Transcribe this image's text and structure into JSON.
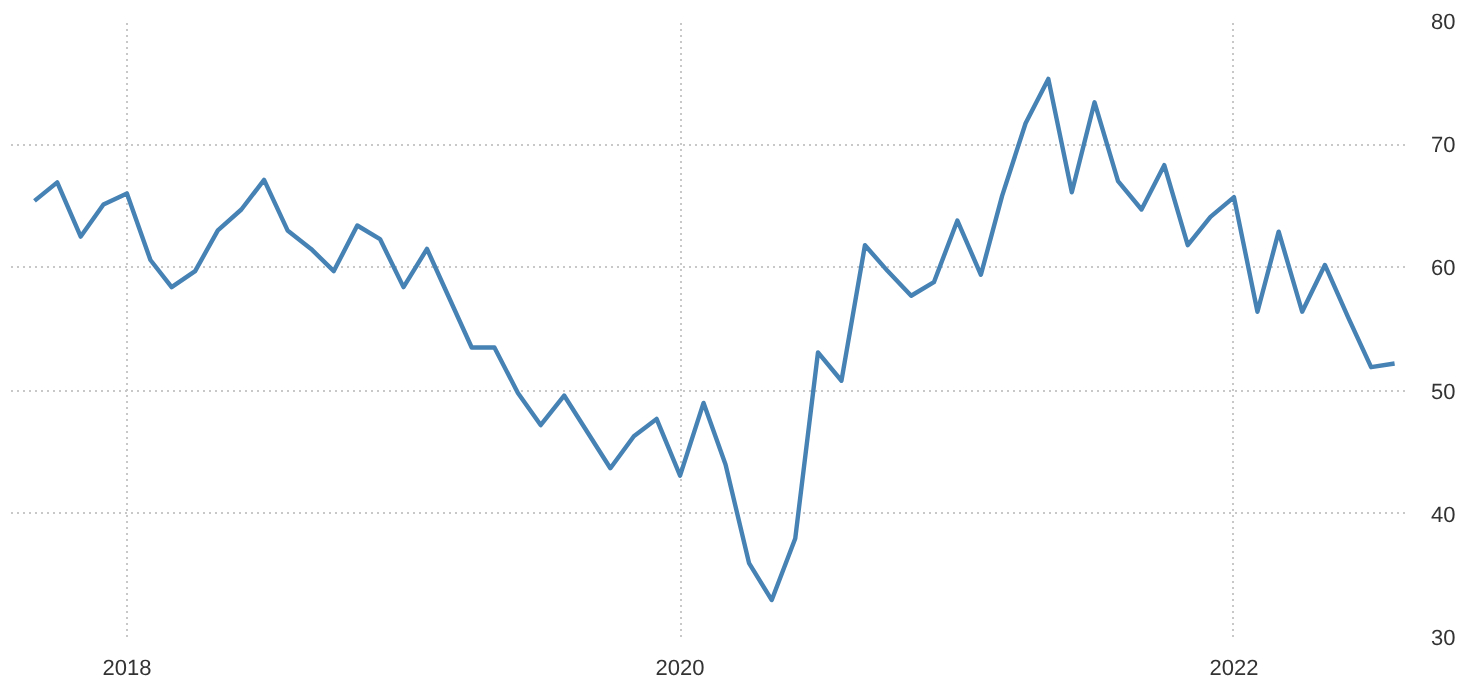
{
  "chart_data": {
    "type": "line",
    "x": [
      "2017-09",
      "2017-10",
      "2017-11",
      "2017-12",
      "2018-01",
      "2018-02",
      "2018-03",
      "2018-04",
      "2018-05",
      "2018-06",
      "2018-07",
      "2018-08",
      "2018-09",
      "2018-10",
      "2018-11",
      "2018-12",
      "2019-01",
      "2019-02",
      "2019-03",
      "2019-04",
      "2019-05",
      "2019-06",
      "2019-07",
      "2019-08",
      "2019-09",
      "2019-10",
      "2019-11",
      "2019-12",
      "2020-01",
      "2020-02",
      "2020-03",
      "2020-04",
      "2020-05",
      "2020-06",
      "2020-07",
      "2020-08",
      "2020-09",
      "2020-10",
      "2020-11",
      "2020-12",
      "2021-01",
      "2021-02",
      "2021-03",
      "2021-04",
      "2021-05",
      "2021-06",
      "2021-07",
      "2021-08",
      "2021-09",
      "2021-10",
      "2021-11",
      "2021-12",
      "2022-01",
      "2022-02",
      "2022-03",
      "2022-04",
      "2022-05",
      "2022-06",
      "2022-07",
      "2022-08"
    ],
    "series": [
      {
        "color": "#4682b4",
        "values": [
          65.4,
          66.9,
          62.5,
          65.1,
          66.0,
          60.6,
          58.4,
          59.7,
          63.0,
          64.7,
          67.1,
          63.0,
          61.5,
          59.7,
          63.4,
          62.3,
          58.4,
          61.5,
          57.7,
          53.5,
          53.5,
          49.8,
          47.2,
          49.6,
          46.6,
          43.7,
          46.3,
          47.7,
          43.1,
          49.0,
          44.0,
          36.0,
          33.0,
          38.0,
          53.1,
          50.8,
          61.8,
          59.7,
          57.7,
          58.8,
          63.8,
          59.4,
          65.8,
          71.7,
          75.3,
          66.1,
          73.4,
          67.0,
          64.7,
          68.3,
          61.8,
          64.1,
          65.7,
          56.4,
          62.9,
          56.4,
          60.2,
          55.9,
          51.9,
          52.2
        ]
      }
    ],
    "xlim": [
      "2017-08-01",
      "2022-08-20"
    ],
    "xticks": [
      {
        "value": "2018-01-01",
        "label": "2018"
      },
      {
        "value": "2020-01-01",
        "label": "2020"
      },
      {
        "value": "2022-01-01",
        "label": "2022"
      }
    ],
    "ylim": [
      30,
      80
    ],
    "yticks": [
      30,
      40,
      50,
      60,
      70,
      80
    ],
    "grid": true,
    "line_style": "solid"
  }
}
